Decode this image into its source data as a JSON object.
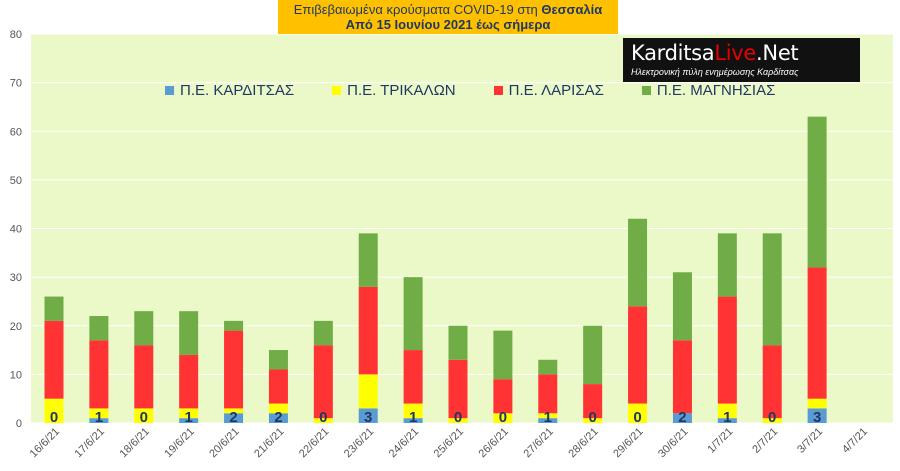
{
  "title": {
    "line1_prefix": "Επιβεβαιωμένα κρούσματα COVID-19 στη ",
    "line1_bold": "Θεσσαλία",
    "line2": "Από 15 Ιουνίου 2021 έως σήμερα"
  },
  "logo": {
    "name_part1": "Karditsa",
    "name_part2": "Live",
    "name_part3": ".Net",
    "subtitle": "Ηλεκτρονική πύλη ενημέρωσης Καρδίτσας"
  },
  "colors": {
    "plot_bg": "#ebf8c7",
    "karditsa": "#5b9bd5",
    "trikala": "#ffff00",
    "larisa": "#ff3333",
    "magnisia": "#70ad47",
    "grid": "#ffffff",
    "axis_text": "#555555",
    "label_text": "#1f3864"
  },
  "chart_data": {
    "type": "bar",
    "stacked": true,
    "ylim": [
      0,
      80
    ],
    "yticks": [
      0,
      10,
      20,
      30,
      40,
      50,
      60,
      70,
      80
    ],
    "grid": true,
    "legend_position": "top",
    "categories": [
      "16/6/21",
      "17/6/21",
      "18/6/21",
      "19/6/21",
      "20/6/21",
      "21/6/21",
      "22/6/21",
      "23/6/21",
      "24/6/21",
      "25/6/21",
      "26/6/21",
      "27/6/21",
      "28/6/21",
      "29/6/21",
      "30/6/21",
      "1/7/21",
      "2/7/21",
      "3/7/21",
      "4/7/21"
    ],
    "series": [
      {
        "name": "Π.Ε. ΚΑΡΔΙΤΣΑΣ",
        "color_key": "karditsa",
        "values": [
          0,
          1,
          0,
          1,
          2,
          2,
          0,
          3,
          1,
          0,
          0,
          1,
          0,
          0,
          2,
          1,
          0,
          3,
          null
        ]
      },
      {
        "name": "Π.Ε. ΤΡΙΚΑΛΩΝ",
        "color_key": "trikala",
        "values": [
          5,
          2,
          3,
          2,
          1,
          2,
          1,
          7,
          3,
          1,
          2,
          1,
          1,
          4,
          0,
          3,
          1,
          2,
          null
        ]
      },
      {
        "name": "Π.Ε. ΛΑΡΙΣΑΣ",
        "color_key": "larisa",
        "values": [
          16,
          14,
          13,
          11,
          16,
          7,
          15,
          18,
          11,
          12,
          7,
          8,
          7,
          20,
          15,
          22,
          15,
          27,
          null
        ]
      },
      {
        "name": "Π.Ε. ΜΑΓΝΗΣΙΑΣ",
        "color_key": "magnisia",
        "values": [
          5,
          5,
          7,
          9,
          2,
          4,
          5,
          11,
          15,
          7,
          10,
          3,
          12,
          18,
          14,
          13,
          23,
          31,
          null
        ]
      }
    ],
    "data_labels": [
      "0",
      "1",
      "0",
      "1",
      "2",
      "2",
      "0",
      "3",
      "1",
      "0",
      "0",
      "1",
      "0",
      "0",
      "2",
      "1",
      "0",
      "3",
      ""
    ]
  }
}
